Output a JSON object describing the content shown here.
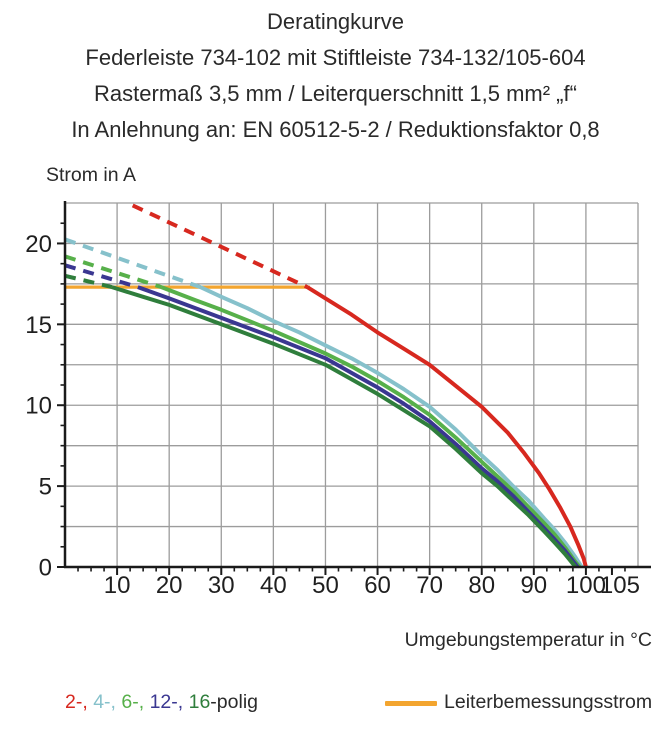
{
  "chart_data": {
    "type": "line",
    "title_lines": [
      "Deratingkurve",
      "Federleiste 734-102 mit Stiftleiste 734-132/105-604",
      "Rastermaß 3,5 mm / Leiterquerschnitt 1,5 mm² „f“",
      "In Anlehnung an: EN 60512-5-2 / Reduktionsfaktor 0,8"
    ],
    "xlabel": "Umgebungstemperatur in °C",
    "ylabel": "Strom in A",
    "xlim": [
      0,
      110
    ],
    "ylim": [
      0,
      22.5
    ],
    "x_major_ticks": [
      10,
      20,
      30,
      40,
      50,
      60,
      70,
      80,
      90,
      100,
      105
    ],
    "x_minor_step": 2.5,
    "y_major_ticks": [
      0,
      5,
      10,
      15,
      20
    ],
    "y_minor_step": 1.25,
    "x_grid_step": 10,
    "y_grid_step": 2.5,
    "grid_on": true,
    "grid_color": "#9c9c9c",
    "axis_color": "#1a1a1a",
    "series": [
      {
        "name": "4-polig",
        "color": "#86c1cb",
        "dashed": [
          [
            0,
            20.25
          ],
          [
            26,
            17.3
          ]
        ],
        "solid": [
          [
            26,
            17.3
          ],
          [
            30,
            16.7
          ],
          [
            35,
            16.0
          ],
          [
            40,
            15.2
          ],
          [
            45,
            14.5
          ],
          [
            50,
            13.7
          ],
          [
            55,
            12.9
          ],
          [
            60,
            12.0
          ],
          [
            65,
            11.0
          ],
          [
            70,
            9.9
          ],
          [
            75,
            8.5
          ],
          [
            80,
            6.9
          ],
          [
            83,
            6.0
          ],
          [
            86,
            5.0
          ],
          [
            89,
            4.1
          ],
          [
            92,
            3.0
          ],
          [
            94,
            2.3
          ],
          [
            96,
            1.5
          ],
          [
            98,
            0.6
          ],
          [
            99.2,
            0
          ]
        ]
      },
      {
        "name": "6-polig",
        "color": "#57b04a",
        "dashed": [
          [
            0,
            19.2
          ],
          [
            18.5,
            17.3
          ]
        ],
        "solid": [
          [
            18.5,
            17.3
          ],
          [
            25,
            16.5
          ],
          [
            30,
            15.9
          ],
          [
            40,
            14.6
          ],
          [
            50,
            13.2
          ],
          [
            55,
            12.4
          ],
          [
            60,
            11.5
          ],
          [
            65,
            10.5
          ],
          [
            70,
            9.4
          ],
          [
            75,
            8.0
          ],
          [
            80,
            6.5
          ],
          [
            83,
            5.6
          ],
          [
            86,
            4.7
          ],
          [
            89,
            3.7
          ],
          [
            92,
            2.7
          ],
          [
            94,
            2.0
          ],
          [
            96,
            1.2
          ],
          [
            98,
            0.3
          ],
          [
            98.8,
            0
          ]
        ]
      },
      {
        "name": "12-polig",
        "color": "#3a3791",
        "dashed": [
          [
            0,
            18.65
          ],
          [
            14,
            17.3
          ]
        ],
        "solid": [
          [
            14,
            17.3
          ],
          [
            20,
            16.6
          ],
          [
            30,
            15.4
          ],
          [
            40,
            14.2
          ],
          [
            50,
            12.9
          ],
          [
            55,
            12.0
          ],
          [
            60,
            11.1
          ],
          [
            65,
            10.1
          ],
          [
            70,
            9.0
          ],
          [
            75,
            7.6
          ],
          [
            80,
            6.1
          ],
          [
            83,
            5.3
          ],
          [
            86,
            4.4
          ],
          [
            89,
            3.4
          ],
          [
            92,
            2.4
          ],
          [
            94,
            1.7
          ],
          [
            96,
            1.0
          ],
          [
            98.4,
            0
          ]
        ]
      },
      {
        "name": "16-polig",
        "color": "#2f7e3c",
        "dashed": [
          [
            0,
            18.0
          ],
          [
            9,
            17.3
          ]
        ],
        "solid": [
          [
            9,
            17.3
          ],
          [
            15,
            16.7
          ],
          [
            20,
            16.2
          ],
          [
            30,
            15.0
          ],
          [
            40,
            13.8
          ],
          [
            50,
            12.5
          ],
          [
            55,
            11.6
          ],
          [
            60,
            10.7
          ],
          [
            65,
            9.7
          ],
          [
            70,
            8.7
          ],
          [
            75,
            7.3
          ],
          [
            80,
            5.8
          ],
          [
            83,
            5.0
          ],
          [
            86,
            4.1
          ],
          [
            89,
            3.2
          ],
          [
            92,
            2.2
          ],
          [
            94,
            1.5
          ],
          [
            96,
            0.8
          ],
          [
            98,
            0
          ]
        ]
      },
      {
        "name": "2-polig",
        "color": "#d7281f",
        "dashed": [
          [
            13,
            22.35
          ],
          [
            46.5,
            17.3
          ]
        ],
        "solid": [
          [
            46.5,
            17.3
          ],
          [
            50,
            16.6
          ],
          [
            55,
            15.6
          ],
          [
            60,
            14.5
          ],
          [
            65,
            13.5
          ],
          [
            70,
            12.5
          ],
          [
            75,
            11.2
          ],
          [
            80,
            9.9
          ],
          [
            85,
            8.3
          ],
          [
            88,
            7.1
          ],
          [
            91,
            5.8
          ],
          [
            93,
            4.8
          ],
          [
            95,
            3.7
          ],
          [
            97,
            2.5
          ],
          [
            98.5,
            1.4
          ],
          [
            99.6,
            0.5
          ],
          [
            100,
            0
          ]
        ]
      }
    ],
    "reference_line": {
      "label": "Leiterbemessungsstrom",
      "color": "#f3a52f",
      "y": 17.3,
      "x_start": 0,
      "x_end": 47
    }
  },
  "legend": {
    "poles_segments": [
      {
        "text": "2-, ",
        "color": "#d7281f"
      },
      {
        "text": "4-, ",
        "color": "#86c1cb"
      },
      {
        "text": "6-, ",
        "color": "#57b04a"
      },
      {
        "text": "12-, ",
        "color": "#3a3791"
      },
      {
        "text": "16",
        "color": "#2f7e3c"
      },
      {
        "text": "-polig",
        "color": "#2a2a2a"
      }
    ],
    "reference_label": "Leiterbemessungsstrom"
  }
}
